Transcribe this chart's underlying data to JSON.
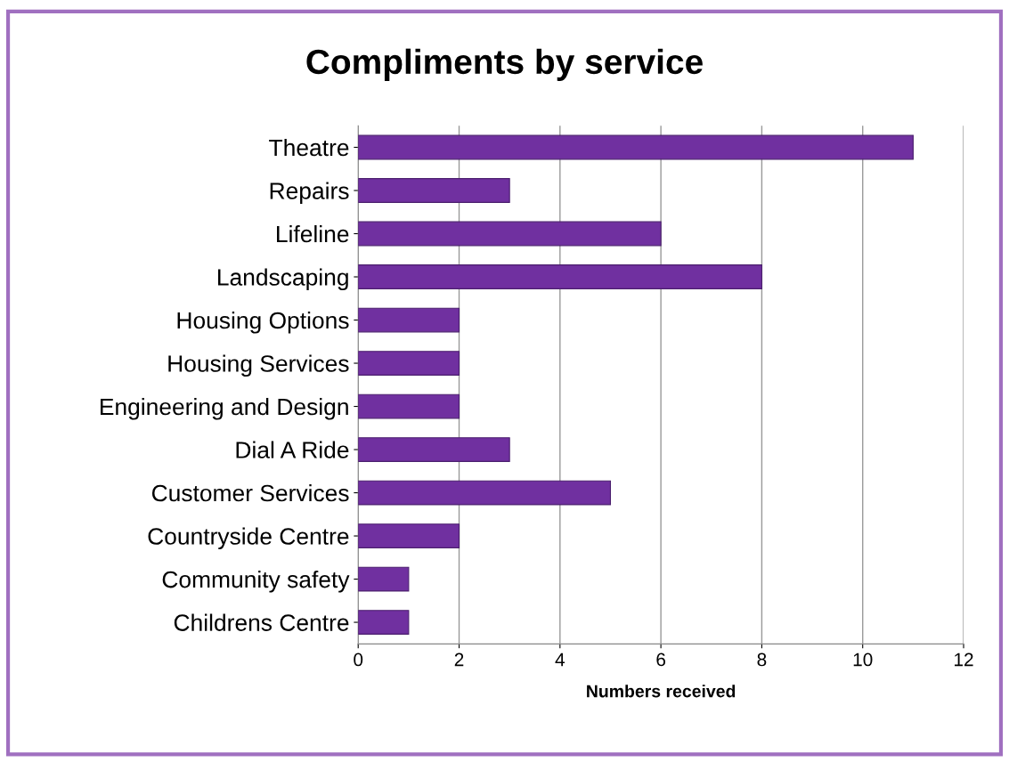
{
  "chart_data": {
    "type": "bar",
    "orientation": "horizontal",
    "title": "Compliments by service",
    "xlabel": "Numbers received",
    "categories": [
      "Theatre",
      "Repairs",
      "Lifeline",
      "Landscaping",
      "Housing Options",
      "Housing Services",
      "Engineering and Design",
      "Dial A Ride",
      "Customer Services",
      "Countryside Centre",
      "Community safety",
      "Childrens Centre"
    ],
    "values": [
      11,
      3,
      6,
      8,
      2,
      2,
      2,
      3,
      5,
      2,
      1,
      1
    ],
    "color": "#7030a0",
    "xlim": [
      0,
      12
    ],
    "xticks": [
      0,
      2,
      4,
      6,
      8,
      10,
      12
    ],
    "grid": "x"
  }
}
